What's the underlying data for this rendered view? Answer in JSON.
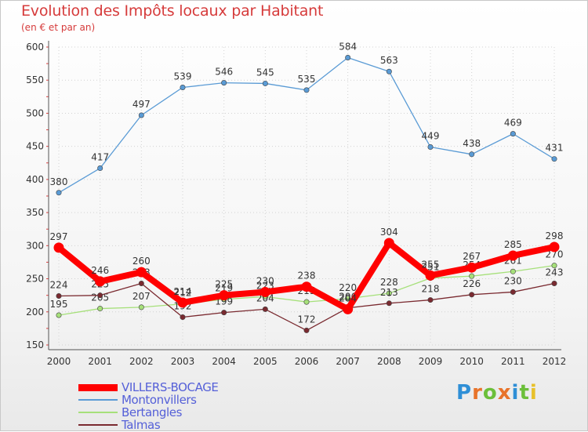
{
  "header": {
    "title": "Evolution des Impôts locaux par Habitant",
    "subtitle": "(en € et par an)"
  },
  "brand": {
    "letters": [
      "P",
      "r",
      "o",
      "x",
      "i",
      "t",
      "i"
    ],
    "colors": [
      "#2f8fd6",
      "#e8732a",
      "#6cbf3a",
      "#e8732a",
      "#2f8fd6",
      "#6cbf3a",
      "#e8c12a"
    ]
  },
  "chart_data": {
    "type": "line",
    "title": "Evolution des Impôts locaux par Habitant",
    "subtitle": "(en € et par an)",
    "xlabel": "",
    "ylabel": "",
    "ylim": [
      150,
      600
    ],
    "yticks": [
      150,
      200,
      250,
      300,
      350,
      400,
      450,
      500,
      550,
      600
    ],
    "grid": true,
    "legend_position": "bottom-left",
    "categories": [
      "2000",
      "2001",
      "2002",
      "2003",
      "2004",
      "2005",
      "2006",
      "2007",
      "2008",
      "2009",
      "2010",
      "2011",
      "2012"
    ],
    "series": [
      {
        "name": "VILLERS-BOCAGE",
        "color": "#ff0000",
        "emphasis": true,
        "values": [
          297,
          246,
          260,
          214,
          225,
          230,
          238,
          204,
          304,
          255,
          267,
          285,
          298
        ]
      },
      {
        "name": "Montonvillers",
        "color": "#5a9bd5",
        "values": [
          380,
          417,
          497,
          539,
          546,
          545,
          535,
          584,
          563,
          449,
          438,
          469,
          431
        ]
      },
      {
        "name": "Bertangles",
        "color": "#a6e07a",
        "values": [
          195,
          205,
          207,
          212,
          219,
          223,
          215,
          220,
          228,
          251,
          254,
          261,
          270
        ]
      },
      {
        "name": "Talmas",
        "color": "#7a2a30",
        "values": [
          224,
          225,
          243,
          192,
          199,
          204,
          172,
          206,
          213,
          218,
          226,
          230,
          243
        ]
      }
    ]
  }
}
